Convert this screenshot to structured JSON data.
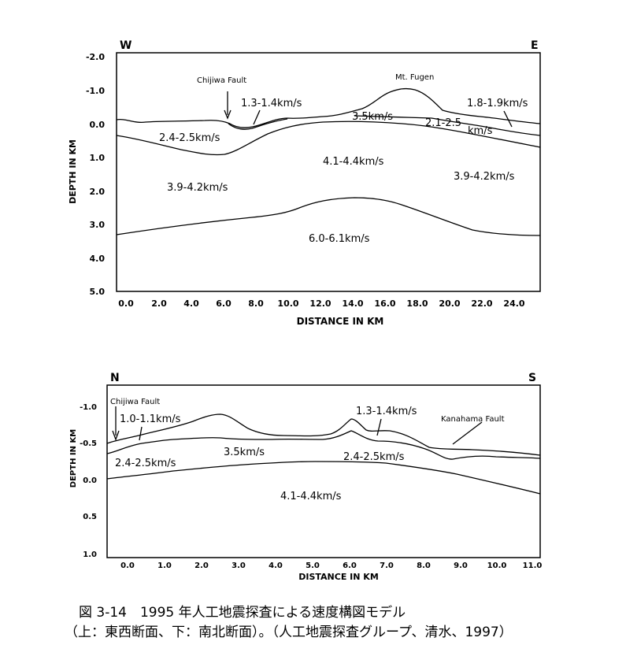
{
  "top_section": {
    "direction_left": "W",
    "direction_right": "E",
    "y_axis_label": "DEPTH IN KM",
    "x_axis_label": "DISTANCE IN KM",
    "y_ticks": [
      "-2.0",
      "-1.0",
      "0.0",
      "1.0",
      "2.0",
      "3.0",
      "4.0",
      "5.0"
    ],
    "x_ticks": [
      "0.0",
      "2.0",
      "4.0",
      "6.0",
      "8.0",
      "10.0",
      "12.0",
      "14.0",
      "16.0",
      "18.0",
      "20.0",
      "22.0",
      "24.0"
    ],
    "fault_label": "Chijiwa Fault",
    "peak_label": "Mt. Fugen",
    "velocity_labels": {
      "v1": "1.3-1.4km/s",
      "v2": "1.8-1.9km/s",
      "v3": "3.5km/s",
      "v4a": "2.1-2.5",
      "v4b": "km/s",
      "v5": "2.4-2.5km/s",
      "v6": "4.1-4.4km/s",
      "v7": "3.9-4.2km/s",
      "v8": "3.9-4.2km/s",
      "v9": "6.0-6.1km/s"
    }
  },
  "bottom_section": {
    "direction_left": "N",
    "direction_right": "S",
    "y_axis_label": "DEPTH IN KM",
    "x_axis_label": "DISTANCE IN KM",
    "y_ticks": [
      "-1.0",
      "-0.5",
      "0.0",
      "0.5",
      "1.0"
    ],
    "x_ticks": [
      "0.0",
      "1.0",
      "2.0",
      "3.0",
      "4.0",
      "5.0",
      "6.0",
      "7.0",
      "8.0",
      "9.0",
      "10.0",
      "11.0"
    ],
    "fault_label_left": "Chijiwa Fault",
    "fault_label_right": "Kanahama Fault",
    "velocity_labels": {
      "v1": "1.0-1.1km/s",
      "v2": "1.3-1.4km/s",
      "v3": "2.4-2.5km/s",
      "v4": "3.5km/s",
      "v5": "2.4-2.5km/s",
      "v6": "4.1-4.4km/s"
    }
  },
  "caption": {
    "line1": "図 3-14　1995 年人工地震探査による速度構図モデル",
    "line2": "（上：東西断面、下：南北断面）。（人工地震探査グループ、清水、1997）"
  }
}
